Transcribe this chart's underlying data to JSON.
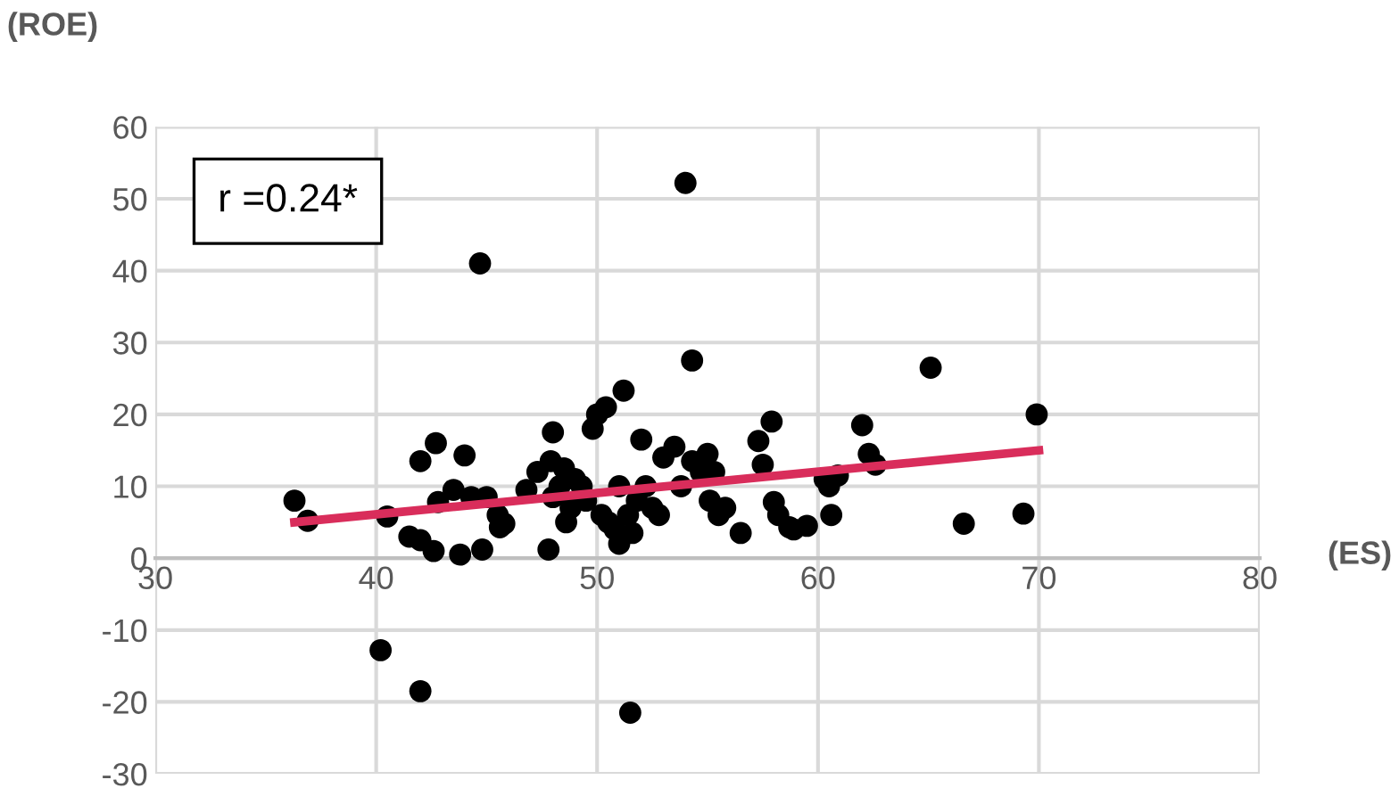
{
  "chart_data": {
    "type": "scatter",
    "xlabel": "(ES)",
    "ylabel": "(ROE)",
    "annotations": [
      "r =0.24*"
    ],
    "xlim": [
      30,
      80
    ],
    "xticks": [
      30,
      40,
      50,
      60,
      70,
      80
    ],
    "ylim": [
      -30,
      60
    ],
    "yticks": [
      -30,
      -20,
      -10,
      0,
      10,
      20,
      30,
      40,
      50,
      60
    ],
    "grid": true,
    "series": [
      {
        "marker": "circle",
        "color": "#000000",
        "x": [
          36.3,
          36.9,
          40.2,
          40.5,
          41.5,
          42,
          42,
          42,
          42.6,
          42.7,
          42.8,
          43.5,
          43.8,
          44,
          44.3,
          44.7,
          44.8,
          45,
          45.5,
          45.6,
          45.8,
          46.8,
          47.3,
          47.8,
          47.9,
          48,
          48,
          48.3,
          48.5,
          48.6,
          48.8,
          49,
          49.3,
          49.5,
          49.8,
          50,
          50.2,
          50.4,
          50.5,
          50.8,
          51,
          51,
          51.2,
          51.4,
          51.5,
          51.6,
          51.8,
          52,
          52.2,
          52.5,
          52.8,
          53,
          53.5,
          53.8,
          54,
          54.3,
          54.3,
          54.7,
          55,
          55.1,
          55.3,
          55.5,
          55.8,
          56.5,
          57.3,
          57.5,
          57.9,
          58,
          58.2,
          58.7,
          58.9,
          59.5,
          60.3,
          60.5,
          60.6,
          60.9,
          62,
          62.3,
          62.6,
          65.1,
          66.6,
          69.3,
          69.9
        ],
        "values": [
          8,
          5.2,
          -12.8,
          5.8,
          3,
          2.5,
          13.5,
          -18.5,
          1,
          16,
          7.8,
          9.5,
          0.5,
          14.3,
          8.5,
          41,
          1.2,
          8.5,
          6,
          4.3,
          4.8,
          9.5,
          12,
          1.2,
          13.5,
          17.5,
          8.5,
          10,
          12.5,
          5,
          7,
          11,
          10,
          8,
          18,
          20,
          6,
          21,
          5,
          4,
          10,
          2,
          23.3,
          6,
          -21.5,
          3.5,
          8,
          16.5,
          10,
          7,
          6,
          14,
          15.5,
          10,
          52.2,
          27.5,
          13.5,
          12,
          14.5,
          8,
          12,
          6,
          7,
          3.5,
          16.3,
          13,
          19,
          7.8,
          6,
          4.3,
          4,
          4.5,
          11,
          10,
          6,
          11.5,
          18.5,
          14.5,
          13,
          26.5,
          4.8,
          6.2,
          20
        ]
      },
      {
        "type": "line",
        "marker": "none",
        "color": "#d92d5b",
        "x": [
          36.3,
          70
        ],
        "values": [
          5,
          15
        ]
      }
    ]
  }
}
